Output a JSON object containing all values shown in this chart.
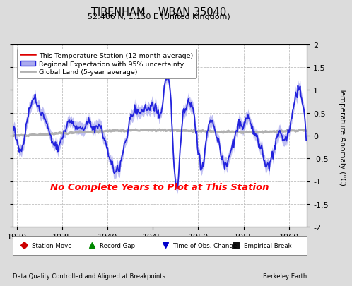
{
  "title": "TIBENHAM    WBAN 35040",
  "subtitle": "52.466 N, 1.150 E (United Kingdom)",
  "ylabel": "Temperature Anomaly (°C)",
  "xlabel_left": "Data Quality Controlled and Aligned at Breakpoints",
  "xlabel_right": "Berkeley Earth",
  "no_data_text": "No Complete Years to Plot at This Station",
  "xlim": [
    1929.5,
    1962.0
  ],
  "ylim": [
    -2.0,
    2.0
  ],
  "xticks": [
    1930,
    1935,
    1940,
    1945,
    1950,
    1955,
    1960
  ],
  "yticks": [
    -2.0,
    -1.5,
    -1.0,
    -0.5,
    0.0,
    0.5,
    1.0,
    1.5,
    2.0
  ],
  "bg_color": "#dcdcdc",
  "plot_bg_color": "#ffffff",
  "grid_color": "#c0c0c0",
  "regional_color": "#2222dd",
  "regional_fill_color": "#aaaaee",
  "global_color": "#b0b0b0",
  "station_color": "#dd0000",
  "no_data_color": "#ff0000",
  "legend_labels": [
    "This Temperature Station (12-month average)",
    "Regional Expectation with 95% uncertainty",
    "Global Land (5-year average)"
  ],
  "bottom_legend": [
    {
      "label": "Station Move",
      "color": "#cc0000",
      "marker": "D"
    },
    {
      "label": "Record Gap",
      "color": "#008800",
      "marker": "^"
    },
    {
      "label": "Time of Obs. Change",
      "color": "#0000cc",
      "marker": "v"
    },
    {
      "label": "Empirical Break",
      "color": "#111111",
      "marker": "s"
    }
  ]
}
